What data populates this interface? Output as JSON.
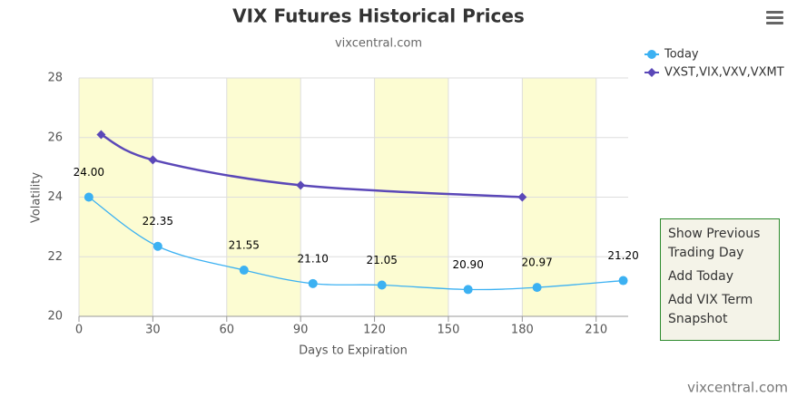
{
  "chart_data": {
    "type": "line",
    "title": "VIX Futures Historical Prices",
    "subtitle": "vixcentral.com",
    "x_label": "Days to Expiration",
    "y_label": "Volatility",
    "credit": "vixcentral.com",
    "xlim": [
      0,
      223
    ],
    "ylim": [
      20,
      28
    ],
    "xticks": [
      0,
      30,
      60,
      90,
      120,
      150,
      180,
      210
    ],
    "yticks": [
      20,
      22,
      24,
      26,
      28
    ],
    "plot_bands": [
      [
        0,
        30
      ],
      [
        60,
        90
      ],
      [
        120,
        150
      ],
      [
        180,
        210
      ]
    ],
    "band_color": "#fcfcd2",
    "grid": true,
    "legend": "top-right",
    "series": [
      {
        "name": "Today",
        "color": "#3cb1f2",
        "marker": "circle",
        "x": [
          4,
          32,
          67,
          95,
          123,
          158,
          186,
          221
        ],
        "values": [
          24,
          22.35,
          21.55,
          21.1,
          21.05,
          20.9,
          20.97,
          21.2
        ],
        "value_labels": [
          "24.00",
          "22.35",
          "21.55",
          "21.10",
          "21.05",
          "20.90",
          "20.97",
          "21.20"
        ]
      },
      {
        "name": "VXST,VIX,VXV,VXMT",
        "color": "#5b48b8",
        "marker": "diamond",
        "x": [
          9,
          30,
          90,
          180
        ],
        "values": [
          26.1,
          25.25,
          24.4,
          24.0
        ]
      }
    ]
  },
  "menu": {
    "items": [
      "Show Previous Trading Day",
      "Add Today",
      "Add VIX Term Snapshot"
    ]
  }
}
